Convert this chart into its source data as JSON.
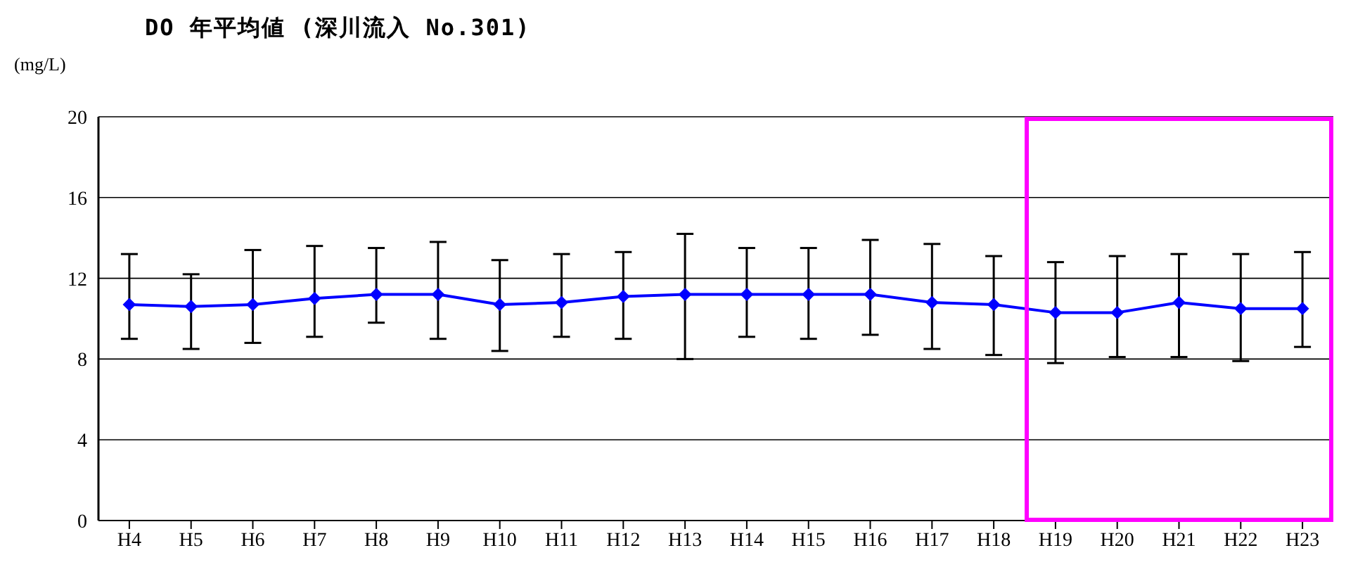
{
  "chart_data": {
    "type": "line",
    "title": "DO 年平均値 (深川流入 No.301)",
    "ylabel": "(mg/L)",
    "categories": [
      "H4",
      "H5",
      "H6",
      "H7",
      "H8",
      "H9",
      "H10",
      "H11",
      "H12",
      "H13",
      "H14",
      "H15",
      "H16",
      "H17",
      "H18",
      "H19",
      "H20",
      "H21",
      "H22",
      "H23"
    ],
    "series": [
      {
        "color": "#0000ff",
        "values": [
          10.7,
          10.6,
          10.7,
          11.0,
          11.2,
          11.2,
          10.7,
          10.8,
          11.1,
          11.2,
          11.2,
          11.2,
          11.2,
          10.8,
          10.7,
          10.3,
          10.3,
          10.8,
          10.5,
          10.5
        ],
        "errors": [
          [
            9.0,
            13.2
          ],
          [
            8.5,
            12.2
          ],
          [
            8.8,
            13.4
          ],
          [
            9.1,
            13.6
          ],
          [
            9.8,
            13.5
          ],
          [
            9.0,
            13.8
          ],
          [
            8.4,
            12.9
          ],
          [
            9.1,
            13.2
          ],
          [
            9.0,
            13.3
          ],
          [
            8.0,
            14.2
          ],
          [
            9.1,
            13.5
          ],
          [
            9.0,
            13.5
          ],
          [
            9.2,
            13.9
          ],
          [
            8.5,
            13.7
          ],
          [
            8.2,
            13.1
          ],
          [
            7.8,
            12.8
          ],
          [
            8.1,
            13.1
          ],
          [
            8.1,
            13.2
          ],
          [
            7.9,
            13.2
          ],
          [
            8.6,
            13.3
          ]
        ]
      }
    ],
    "ylim": [
      0,
      20
    ],
    "yticks": [
      0,
      4,
      8,
      12,
      16,
      20
    ],
    "grid": "y",
    "marker": "diamond",
    "line_style": "solid",
    "legend": false
  }
}
